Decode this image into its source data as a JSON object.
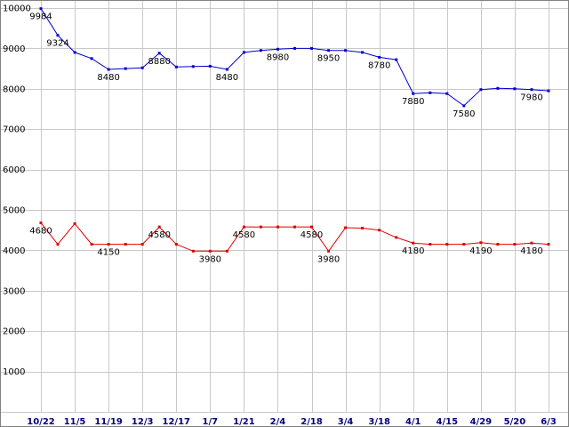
{
  "chart_data": {
    "type": "line",
    "title": "",
    "grid": true,
    "legend": "none",
    "x_axis": {
      "tick_labels": [
        "10/22",
        "11/5",
        "11/19",
        "12/3",
        "12/17",
        "1/7",
        "1/21",
        "2/4",
        "2/18",
        "3/4",
        "3/18",
        "4/1",
        "4/15",
        "4/29",
        "5/20",
        "6/3"
      ],
      "ticks_every_n_points": 2,
      "label_color": "#000080"
    },
    "y_axis": {
      "min": 0,
      "max": 10000,
      "tick_step": 1000,
      "tick_labels": [
        "10000",
        "9000",
        "8000",
        "7000",
        "6000",
        "5000",
        "4000",
        "3000",
        "2000",
        "1000"
      ],
      "label_color": "#000000"
    },
    "grid_color": "#c9c9c9",
    "point_label_color": "#000000",
    "series": [
      {
        "name": "upper-price-series",
        "color": "#0000cc",
        "values": [
          9984,
          9324,
          8900,
          8750,
          8480,
          8500,
          8520,
          8880,
          8540,
          8550,
          8560,
          8480,
          8900,
          8950,
          8980,
          9000,
          9000,
          8950,
          8950,
          8900,
          8780,
          8720,
          7880,
          7900,
          7880,
          7580,
          7980,
          8010,
          8000,
          7980,
          7950
        ],
        "point_labels": [
          {
            "index": 0,
            "text": "9984"
          },
          {
            "index": 1,
            "text": "9324"
          },
          {
            "index": 4,
            "text": "8480"
          },
          {
            "index": 7,
            "text": "8880"
          },
          {
            "index": 11,
            "text": "8480"
          },
          {
            "index": 14,
            "text": "8980"
          },
          {
            "index": 17,
            "text": "8950"
          },
          {
            "index": 20,
            "text": "8780"
          },
          {
            "index": 22,
            "text": "7880"
          },
          {
            "index": 25,
            "text": "7580"
          },
          {
            "index": 29,
            "text": "7980"
          }
        ]
      },
      {
        "name": "lower-price-series",
        "color": "#dd0000",
        "values": [
          4680,
          4150,
          4660,
          4150,
          4150,
          4150,
          4150,
          4580,
          4150,
          3980,
          3980,
          3980,
          4580,
          4580,
          4580,
          4580,
          4580,
          3980,
          4560,
          4550,
          4500,
          4320,
          4180,
          4150,
          4150,
          4150,
          4190,
          4150,
          4150,
          4180,
          4150
        ],
        "point_labels": [
          {
            "index": 0,
            "text": "4680"
          },
          {
            "index": 4,
            "text": "4150"
          },
          {
            "index": 7,
            "text": "4580"
          },
          {
            "index": 10,
            "text": "3980"
          },
          {
            "index": 12,
            "text": "4580"
          },
          {
            "index": 16,
            "text": "4580"
          },
          {
            "index": 17,
            "text": "3980"
          },
          {
            "index": 22,
            "text": "4180"
          },
          {
            "index": 26,
            "text": "4190"
          },
          {
            "index": 29,
            "text": "4180"
          }
        ]
      }
    ]
  }
}
